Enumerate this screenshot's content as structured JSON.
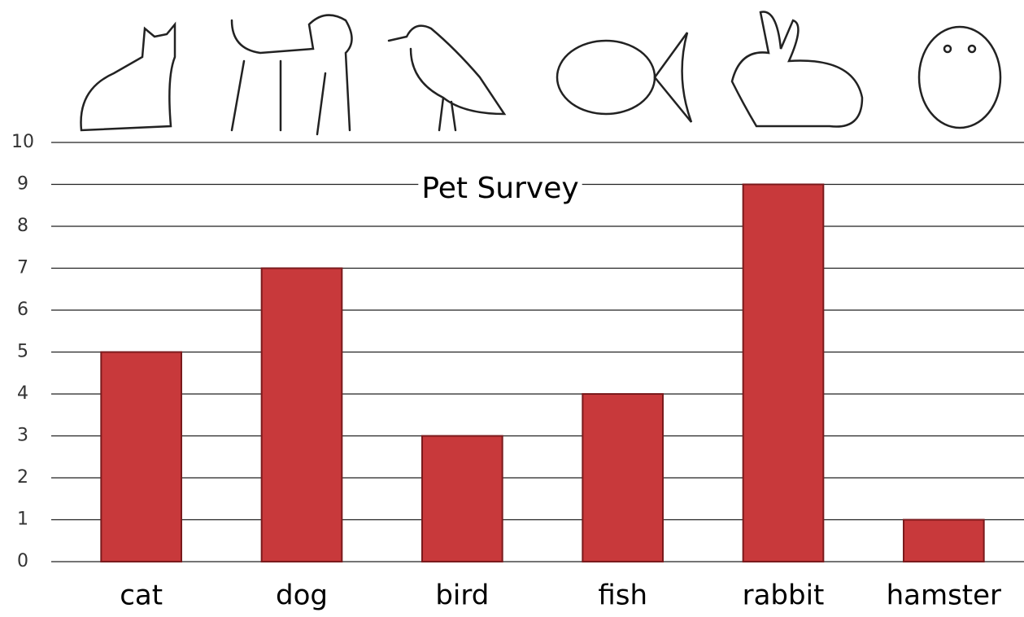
{
  "chart_data": {
    "type": "bar",
    "title": "Pet Survey",
    "categories": [
      "cat",
      "dog",
      "bird",
      "fish",
      "rabbit",
      "hamster"
    ],
    "values": [
      5,
      7,
      3,
      4,
      9,
      1
    ],
    "color": "#c8393b",
    "ylim": [
      0,
      10
    ],
    "yticks": [
      0,
      1,
      2,
      3,
      4,
      5,
      6,
      7,
      8,
      9,
      10
    ],
    "grid": true
  }
}
